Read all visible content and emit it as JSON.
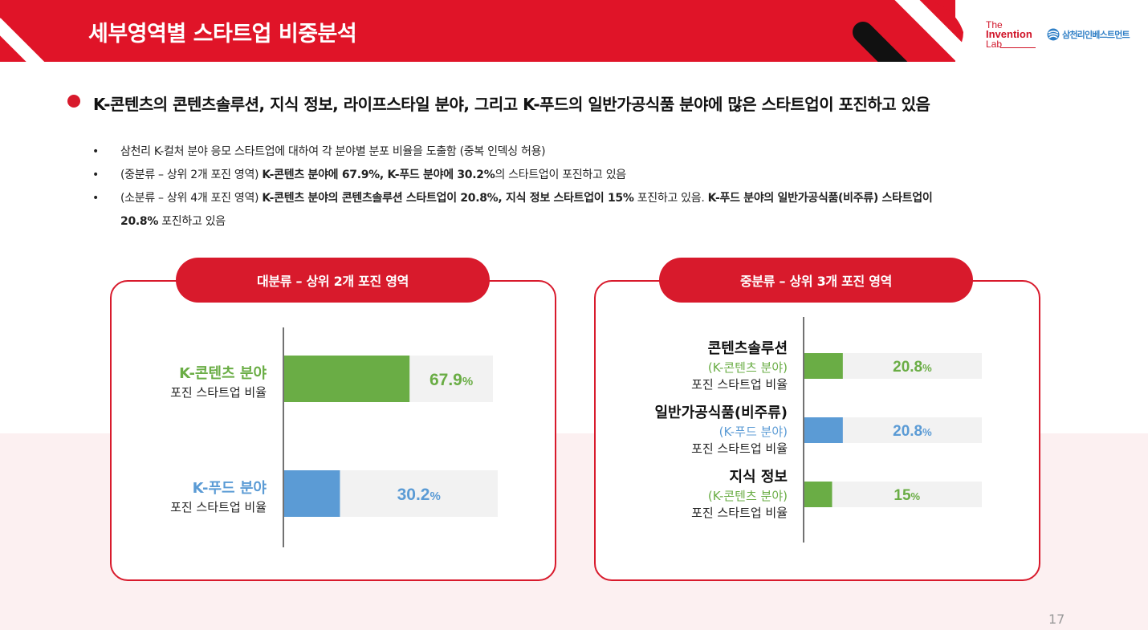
{
  "header": {
    "title": "세부영역별 스타트업 비중분석",
    "logo_lab": [
      "The",
      "Invention",
      "Lab"
    ],
    "logo_sponsor": "삼천리인베스트먼트",
    "colors": {
      "brand_red": "#e01428",
      "black": "#111111"
    }
  },
  "headline": "K-콘텐츠의 콘텐츠솔루션, 지식 정보, 라이프스타일 분야, 그리고 K-푸드의 일반가공식품 분야에 많은 스타트업이 포진하고 있음",
  "bullets": [
    {
      "segments": [
        {
          "text": "삼천리 K-컬처 분야 응모 스타트업에 대하여 각 분야별 분포 비율을 도출함 (중복 인덱싱 허용)",
          "bold": false
        }
      ]
    },
    {
      "segments": [
        {
          "text": "(중분류 – 상위 2개 포진 영역) ",
          "bold": false
        },
        {
          "text": "K-콘텐츠 분야에 67.9%, K-푸드 분야에 30.2%",
          "bold": true
        },
        {
          "text": "의 스타트업이 포진하고 있음",
          "bold": false
        }
      ]
    },
    {
      "segments": [
        {
          "text": "(소분류 – 상위 4개 포진 영역) ",
          "bold": false
        },
        {
          "text": "K-콘텐츠 분야의 콘텐츠솔루션 스타트업이 20.8%, 지식 정보 스타트업이 15%",
          "bold": true
        },
        {
          "text": " 포진하고 있음. ",
          "bold": false
        },
        {
          "text": "K-푸드 분야의 일반가공식품(비주류) 스타트업이",
          "bold": true
        }
      ]
    },
    {
      "segments": [
        {
          "text": "20.8%",
          "bold": true
        },
        {
          "text": " 포진하고 있음",
          "bold": false
        }
      ],
      "continuation": true
    }
  ],
  "bullet_char": "•",
  "chart_data": [
    {
      "type": "bar",
      "orientation": "horizontal",
      "title": "대분류 – 상위 2개 포진 영역",
      "xlim": [
        0,
        100
      ],
      "grid": false,
      "categories": [
        {
          "name": "K-콘텐츠 분야",
          "sub": "포진 스타트업 비율",
          "value": 67.9,
          "label": "67.9",
          "unit": "%",
          "color": "#6aad45"
        },
        {
          "name": "K-푸드 분야",
          "sub": "포진 스타트업 비율",
          "value": 30.2,
          "label": "30.2",
          "unit": "%",
          "color": "#5b9bd5"
        }
      ]
    },
    {
      "type": "bar",
      "orientation": "horizontal",
      "title": "중분류 – 상위 3개 포진 영역",
      "xlim": [
        0,
        100
      ],
      "grid": false,
      "categories": [
        {
          "name": "콘텐츠솔루션",
          "parent": "(K-콘텐츠 분야)",
          "sub": "포진 스타트업 비율",
          "value": 20.8,
          "label": "20.8",
          "unit": "%",
          "color": "#6aad45"
        },
        {
          "name": "일반가공식품(비주류)",
          "parent": "(K-푸드 분야)",
          "sub": "포진 스타트업 비율",
          "value": 20.8,
          "label": "20.8",
          "unit": "%",
          "color": "#5b9bd5"
        },
        {
          "name": "지식 정보",
          "parent": "(K-콘텐츠 분야)",
          "sub": "포진 스타트업 비율",
          "value": 15,
          "label": "15",
          "unit": "%",
          "color": "#6aad45"
        }
      ]
    }
  ],
  "page_number": "17",
  "colors": {
    "track": "#f2f2f2",
    "axis": "#444444",
    "panel_border": "#d81a2c"
  }
}
